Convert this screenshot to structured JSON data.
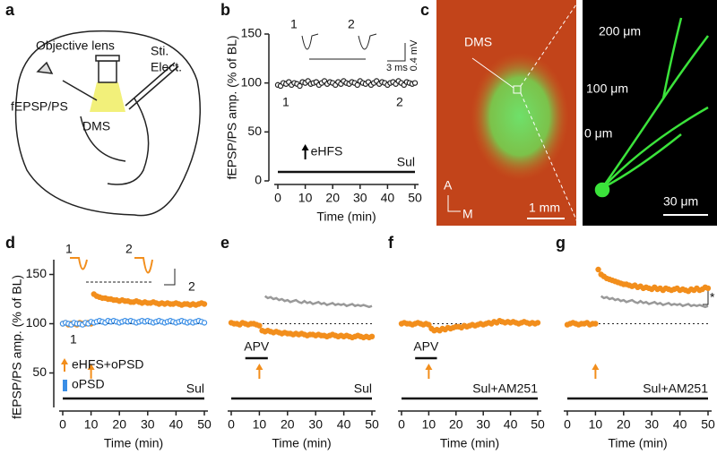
{
  "panel_labels": [
    "a",
    "b",
    "c",
    "d",
    "e",
    "f",
    "g"
  ],
  "schematic": {
    "lens": "Objective lens",
    "electrode": [
      "Sti.",
      "Elect."
    ],
    "recording": "fEPSP/PS",
    "region": "DMS"
  },
  "micrograph": {
    "region": "DMS",
    "distances": [
      "200 μm",
      "100 μm",
      "0 μm"
    ],
    "scale": "30 μm",
    "axes": [
      "A",
      "M"
    ],
    "overview_scale": "1 mm"
  },
  "chart_data": [
    {
      "type": "line",
      "xlabel": "Time (min)",
      "ylabel": "fEPSP/PS amp. (% of BL)",
      "xlim": [
        0,
        50
      ],
      "xticks": [
        0,
        10,
        20,
        30,
        40,
        50
      ],
      "ylim": [
        0,
        150
      ],
      "yticks": [
        0,
        50,
        100,
        150
      ],
      "x": [
        0,
        1,
        2,
        3,
        4,
        5,
        6,
        7,
        8,
        9,
        10,
        11,
        12,
        13,
        14,
        15,
        16,
        17,
        18,
        19,
        20,
        21,
        22,
        23,
        24,
        25,
        26,
        27,
        28,
        29,
        30,
        31,
        32,
        33,
        34,
        35,
        36,
        37,
        38,
        39,
        40,
        41,
        42,
        43,
        44,
        45,
        46,
        47,
        48,
        49,
        50
      ],
      "series": [
        {
          "color": "#222222",
          "style": "open",
          "values": [
            98,
            97,
            100,
            99,
            101,
            98,
            100,
            99,
            97,
            101,
            100,
            102,
            99,
            100,
            101,
            98,
            100,
            102,
            99,
            101,
            100,
            98,
            101,
            99,
            102,
            100,
            99,
            101,
            100,
            98,
            102,
            100,
            99,
            101,
            98,
            100,
            102,
            99,
            101,
            100,
            98,
            100,
            101,
            99,
            102,
            100,
            98,
            101,
            100,
            99,
            100
          ]
        }
      ],
      "arrow_x": 10,
      "arrow_color": "#000000",
      "stimulus": "eHFS",
      "drug": "Sul",
      "annotations": {
        "early": "1",
        "late": "2",
        "trace_early": "1",
        "trace_late": "2",
        "scale_time": "3 ms",
        "scale_amp": "0.4 mV"
      }
    },
    {
      "type": "line",
      "xlabel": "Time (min)",
      "ylabel": "fEPSP/PS amp. (% of BL)",
      "xlim": [
        0,
        50
      ],
      "xticks": [
        0,
        10,
        20,
        30,
        40,
        50
      ],
      "ylim": [
        15,
        165
      ],
      "yticks": [
        50,
        100,
        150
      ],
      "ref_line": 100,
      "x": [
        0,
        1,
        2,
        3,
        4,
        5,
        6,
        7,
        8,
        9,
        10,
        11,
        12,
        13,
        14,
        15,
        16,
        17,
        18,
        19,
        20,
        21,
        22,
        23,
        24,
        25,
        26,
        27,
        28,
        29,
        30,
        31,
        32,
        33,
        34,
        35,
        36,
        37,
        38,
        39,
        40,
        41,
        42,
        43,
        44,
        45,
        46,
        47,
        48,
        49,
        50
      ],
      "series": [
        {
          "name": "eHFS+oPSD",
          "color": "#f28e1c",
          "style": "filled",
          "values": [
            100,
            101,
            99,
            100,
            100,
            99,
            101,
            100,
            100,
            101,
            100,
            130,
            128,
            127,
            126,
            126,
            125,
            125,
            124,
            124,
            123,
            124,
            123,
            123,
            122,
            122,
            123,
            122,
            121,
            122,
            121,
            121,
            122,
            121,
            120,
            121,
            120,
            121,
            120,
            120,
            121,
            120,
            119,
            120,
            120,
            119,
            120,
            119,
            120,
            121,
            120
          ]
        },
        {
          "name": "oPSD",
          "color": "#3a8ee6",
          "style": "open",
          "values": [
            100,
            101,
            100,
            99,
            101,
            100,
            100,
            99,
            101,
            100,
            102,
            101,
            102,
            103,
            102,
            101,
            103,
            102,
            103,
            102,
            101,
            102,
            103,
            102,
            103,
            102,
            101,
            102,
            103,
            102,
            103,
            102,
            101,
            102,
            103,
            102,
            101,
            102,
            103,
            102,
            101,
            102,
            103,
            102,
            101,
            102,
            101,
            102,
            103,
            102,
            101
          ]
        }
      ],
      "arrow_x": 10,
      "arrow_color": "#f28e1c",
      "drug": "Sul",
      "annotations": {
        "early": "1",
        "late": "2"
      }
    },
    {
      "type": "line",
      "xlabel": "Time (min)",
      "xlim": [
        0,
        50
      ],
      "xticks": [
        0,
        10,
        20,
        30,
        40,
        50
      ],
      "ylim": [
        15,
        165
      ],
      "ref_line": 100,
      "x": [
        0,
        1,
        2,
        3,
        4,
        5,
        6,
        7,
        8,
        9,
        10,
        11,
        12,
        13,
        14,
        15,
        16,
        17,
        18,
        19,
        20,
        21,
        22,
        23,
        24,
        25,
        26,
        27,
        28,
        29,
        30,
        31,
        32,
        33,
        34,
        35,
        36,
        37,
        38,
        39,
        40,
        41,
        42,
        43,
        44,
        45,
        46,
        47,
        48,
        49,
        50
      ],
      "series": [
        {
          "color": "#999999",
          "style": "line",
          "values": [
            null,
            null,
            null,
            null,
            null,
            null,
            null,
            null,
            null,
            null,
            null,
            null,
            128,
            126,
            127,
            125,
            126,
            124,
            125,
            123,
            124,
            122,
            123,
            124,
            122,
            121,
            123,
            121,
            122,
            120,
            121,
            122,
            120,
            121,
            119,
            120,
            121,
            119,
            120,
            119,
            120,
            118,
            119,
            120,
            118,
            119,
            118,
            119,
            118,
            117,
            118
          ]
        },
        {
          "color": "#f28e1c",
          "style": "filled",
          "values": [
            101,
            100,
            100,
            99,
            101,
            100,
            99,
            100,
            100,
            99,
            98,
            93,
            92,
            93,
            92,
            91,
            92,
            91,
            90,
            91,
            90,
            90,
            89,
            90,
            89,
            90,
            89,
            88,
            89,
            89,
            88,
            89,
            88,
            88,
            87,
            88,
            89,
            88,
            87,
            88,
            87,
            88,
            87,
            86,
            87,
            88,
            87,
            86,
            87,
            86,
            87
          ]
        }
      ],
      "arrow_x": 10,
      "arrow_color": "#f28e1c",
      "bar_label": "APV",
      "bar_range": [
        5,
        13
      ],
      "drug": "Sul"
    },
    {
      "type": "line",
      "xlabel": "Time (min)",
      "xlim": [
        0,
        50
      ],
      "xticks": [
        0,
        10,
        20,
        30,
        40,
        50
      ],
      "ylim": [
        15,
        165
      ],
      "ref_line": 100,
      "x": [
        0,
        1,
        2,
        3,
        4,
        5,
        6,
        7,
        8,
        9,
        10,
        11,
        12,
        13,
        14,
        15,
        16,
        17,
        18,
        19,
        20,
        21,
        22,
        23,
        24,
        25,
        26,
        27,
        28,
        29,
        30,
        31,
        32,
        33,
        34,
        35,
        36,
        37,
        38,
        39,
        40,
        41,
        42,
        43,
        44,
        45,
        46,
        47,
        48,
        49,
        50
      ],
      "series": [
        {
          "color": "#f28e1c",
          "style": "filled",
          "values": [
            100,
            101,
            100,
            100,
            99,
            100,
            101,
            100,
            99,
            100,
            99,
            95,
            93,
            94,
            93,
            95,
            94,
            96,
            95,
            96,
            97,
            97,
            96,
            98,
            97,
            98,
            99,
            98,
            99,
            100,
            99,
            100,
            101,
            100,
            102,
            101,
            103,
            102,
            101,
            102,
            101,
            102,
            101,
            100,
            101,
            102,
            101,
            100,
            101,
            100,
            101
          ]
        }
      ],
      "arrow_x": 10,
      "arrow_color": "#f28e1c",
      "bar_label": "APV",
      "bar_range": [
        5,
        13
      ],
      "drug": "Sul+AM251"
    },
    {
      "type": "line",
      "xlabel": "Time (min)",
      "xlim": [
        0,
        50
      ],
      "xticks": [
        0,
        10,
        20,
        30,
        40,
        50
      ],
      "ylim": [
        15,
        165
      ],
      "ref_line": 100,
      "x": [
        0,
        1,
        2,
        3,
        4,
        5,
        6,
        7,
        8,
        9,
        10,
        11,
        12,
        13,
        14,
        15,
        16,
        17,
        18,
        19,
        20,
        21,
        22,
        23,
        24,
        25,
        26,
        27,
        28,
        29,
        30,
        31,
        32,
        33,
        34,
        35,
        36,
        37,
        38,
        39,
        40,
        41,
        42,
        43,
        44,
        45,
        46,
        47,
        48,
        49,
        50
      ],
      "series": [
        {
          "color": "#999999",
          "style": "line",
          "values": [
            null,
            null,
            null,
            null,
            null,
            null,
            null,
            null,
            null,
            null,
            null,
            null,
            128,
            126,
            127,
            125,
            126,
            124,
            125,
            123,
            124,
            122,
            123,
            124,
            122,
            121,
            123,
            121,
            122,
            120,
            121,
            122,
            120,
            121,
            119,
            120,
            121,
            119,
            120,
            119,
            120,
            118,
            119,
            120,
            118,
            119,
            118,
            119,
            118,
            117,
            118
          ]
        },
        {
          "color": "#f28e1c",
          "style": "filled",
          "values": [
            99,
            100,
            101,
            100,
            99,
            100,
            100,
            101,
            99,
            100,
            100,
            155,
            150,
            148,
            146,
            145,
            144,
            143,
            142,
            141,
            140,
            140,
            139,
            138,
            139,
            137,
            138,
            136,
            137,
            136,
            135,
            137,
            135,
            136,
            134,
            136,
            135,
            134,
            135,
            136,
            134,
            135,
            134,
            133,
            135,
            134,
            136,
            134,
            135,
            137,
            136
          ]
        }
      ],
      "arrow_x": 10,
      "arrow_color": "#f28e1c",
      "drug": "Sul+AM251",
      "significance": "*"
    }
  ]
}
